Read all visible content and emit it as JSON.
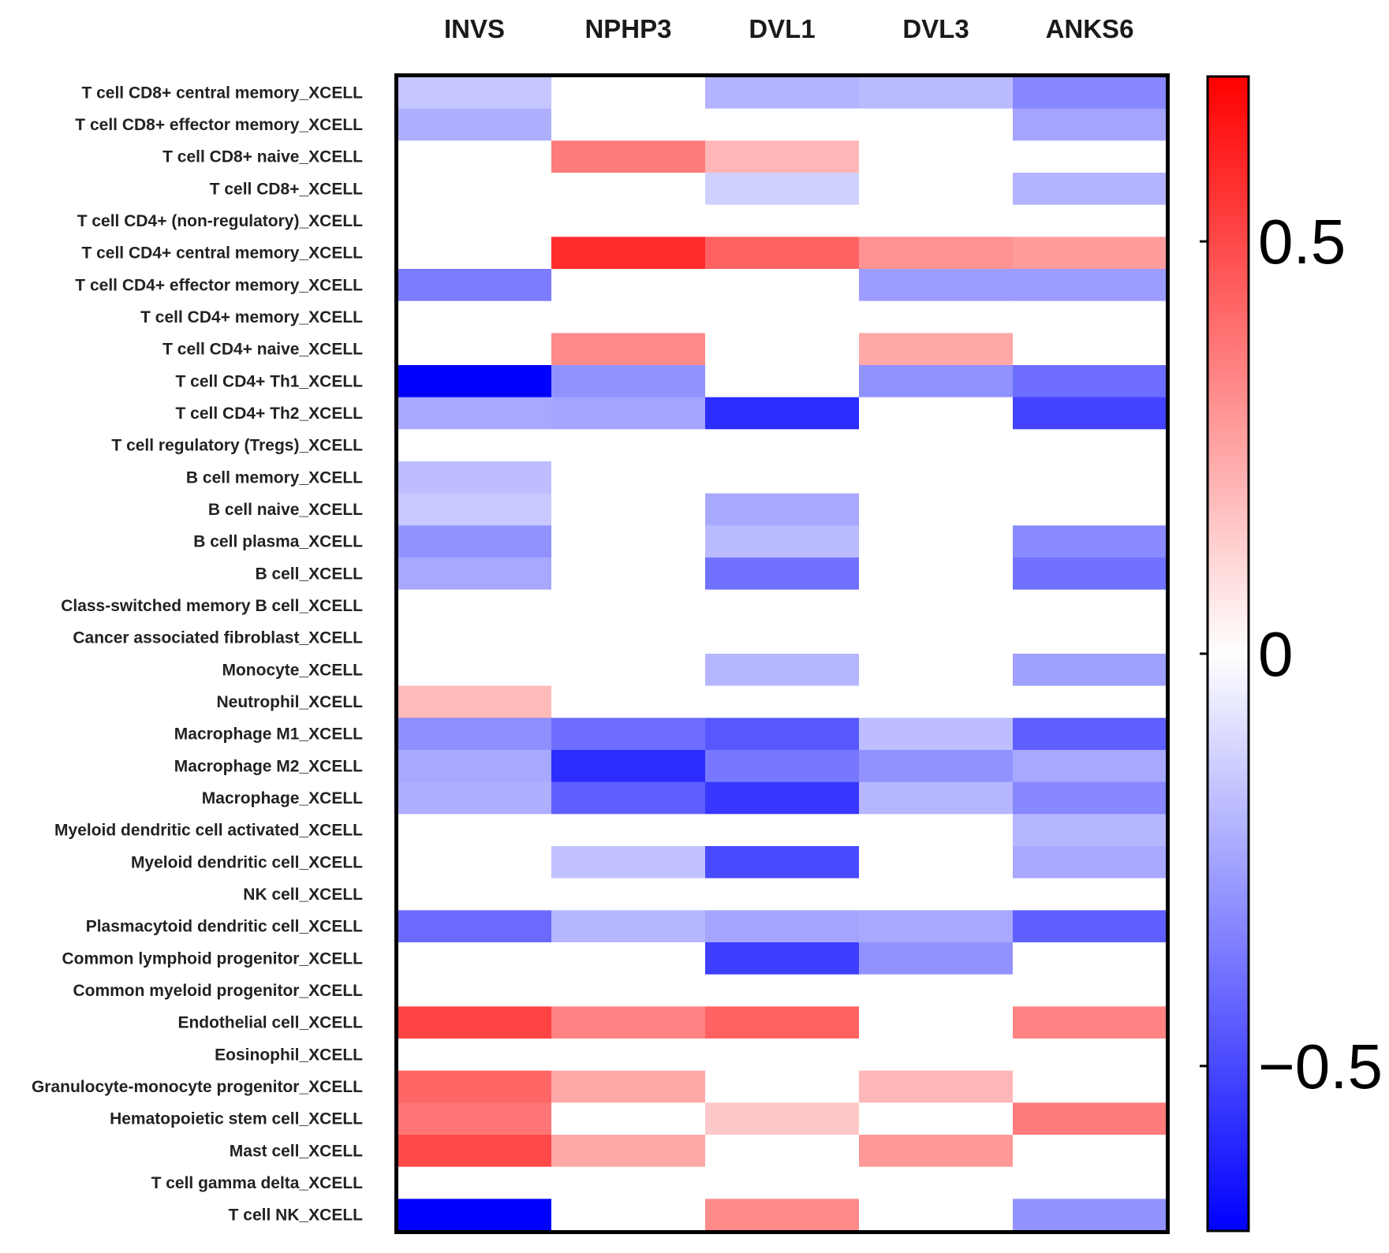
{
  "chart_data": {
    "type": "heatmap",
    "columns": [
      "INVS",
      "NPHP3",
      "DVL1",
      "DVL3",
      "ANKS6"
    ],
    "rows": [
      "T cell CD8+ central memory_XCELL",
      "T cell CD8+ effector memory_XCELL",
      "T cell CD8+ naive_XCELL",
      "T cell CD8+_XCELL",
      "T cell CD4+ (non-regulatory)_XCELL",
      "T cell CD4+ central memory_XCELL",
      "T cell CD4+ effector memory_XCELL",
      "T cell CD4+ memory_XCELL",
      "T cell CD4+ naive_XCELL",
      "T cell CD4+ Th1_XCELL",
      "T cell CD4+ Th2_XCELL",
      "T cell regulatory (Tregs)_XCELL",
      "B cell memory_XCELL",
      "B cell naive_XCELL",
      "B cell plasma_XCELL",
      "B cell_XCELL",
      "Class-switched memory B cell_XCELL",
      "Cancer associated fibroblast_XCELL",
      "Monocyte_XCELL",
      "Neutrophil_XCELL",
      "Macrophage M1_XCELL",
      "Macrophage M2_XCELL",
      "Macrophage_XCELL",
      "Myeloid dendritic cell activated_XCELL",
      "Myeloid dendritic cell_XCELL",
      "NK cell_XCELL",
      "Plasmacytoid dendritic cell_XCELL",
      "Common lymphoid progenitor_XCELL",
      "Common myeloid progenitor_XCELL",
      "Endothelial cell_XCELL",
      "Eosinophil_XCELL",
      "Granulocyte-monocyte progenitor_XCELL",
      "Hematopoietic stem cell_XCELL",
      "Mast cell_XCELL",
      "T cell gamma delta_XCELL",
      "T cell NK_XCELL"
    ],
    "values": [
      [
        -0.16,
        0,
        -0.21,
        -0.19,
        -0.33
      ],
      [
        -0.22,
        0,
        0,
        0,
        -0.25
      ],
      [
        0,
        0.36,
        0.2,
        0,
        0
      ],
      [
        0,
        0,
        -0.13,
        0,
        -0.21
      ],
      [
        0,
        0,
        0,
        0,
        0
      ],
      [
        0,
        0.58,
        0.43,
        0.3,
        0.27
      ],
      [
        -0.36,
        0,
        0,
        -0.27,
        -0.27
      ],
      [
        0,
        0,
        0,
        0,
        0
      ],
      [
        0,
        0.32,
        0,
        0.24,
        0
      ],
      [
        -0.82,
        -0.3,
        0,
        -0.3,
        -0.4
      ],
      [
        -0.24,
        -0.25,
        -0.58,
        0,
        -0.52
      ],
      [
        0,
        0,
        0,
        0,
        0
      ],
      [
        -0.18,
        0,
        0,
        0,
        0
      ],
      [
        -0.15,
        0,
        -0.24,
        0,
        0
      ],
      [
        -0.3,
        0,
        -0.19,
        0,
        -0.32
      ],
      [
        -0.24,
        0,
        -0.39,
        0,
        -0.39
      ],
      [
        0,
        0,
        0,
        0,
        0
      ],
      [
        0,
        0,
        0,
        0,
        0
      ],
      [
        0,
        0,
        -0.2,
        0,
        -0.26
      ],
      [
        0.19,
        0,
        0,
        0,
        0
      ],
      [
        -0.31,
        -0.4,
        -0.46,
        -0.18,
        -0.44
      ],
      [
        -0.24,
        -0.58,
        -0.37,
        -0.3,
        -0.24
      ],
      [
        -0.22,
        -0.44,
        -0.55,
        -0.2,
        -0.33
      ],
      [
        0,
        0,
        0,
        0,
        -0.2
      ],
      [
        0,
        -0.17,
        -0.5,
        0,
        -0.24
      ],
      [
        0,
        0,
        0,
        0,
        0
      ],
      [
        -0.41,
        -0.2,
        -0.25,
        -0.24,
        -0.44
      ],
      [
        0,
        0,
        -0.53,
        -0.3,
        0
      ],
      [
        0,
        0,
        0,
        0,
        0
      ],
      [
        0.52,
        0.34,
        0.43,
        0,
        0.34
      ],
      [
        0,
        0,
        0,
        0,
        0
      ],
      [
        0.42,
        0.24,
        0,
        0.2,
        0
      ],
      [
        0.38,
        0,
        0.15,
        0,
        0.36
      ],
      [
        0.5,
        0.24,
        0,
        0.28,
        0
      ],
      [
        0,
        0,
        0,
        0,
        0
      ],
      [
        -0.75,
        0,
        0.32,
        0,
        -0.3
      ]
    ],
    "colorscale": {
      "min": -0.7,
      "max": 0.7,
      "low_color": "#0000ff",
      "mid_color": "#ffffff",
      "high_color": "#ff0000",
      "ticks": [
        0.5,
        0,
        -0.5
      ],
      "tick_labels": [
        "0.5",
        "0",
        "−0.5"
      ]
    },
    "title": "",
    "xlabel": "",
    "ylabel": "",
    "legend": "right"
  }
}
